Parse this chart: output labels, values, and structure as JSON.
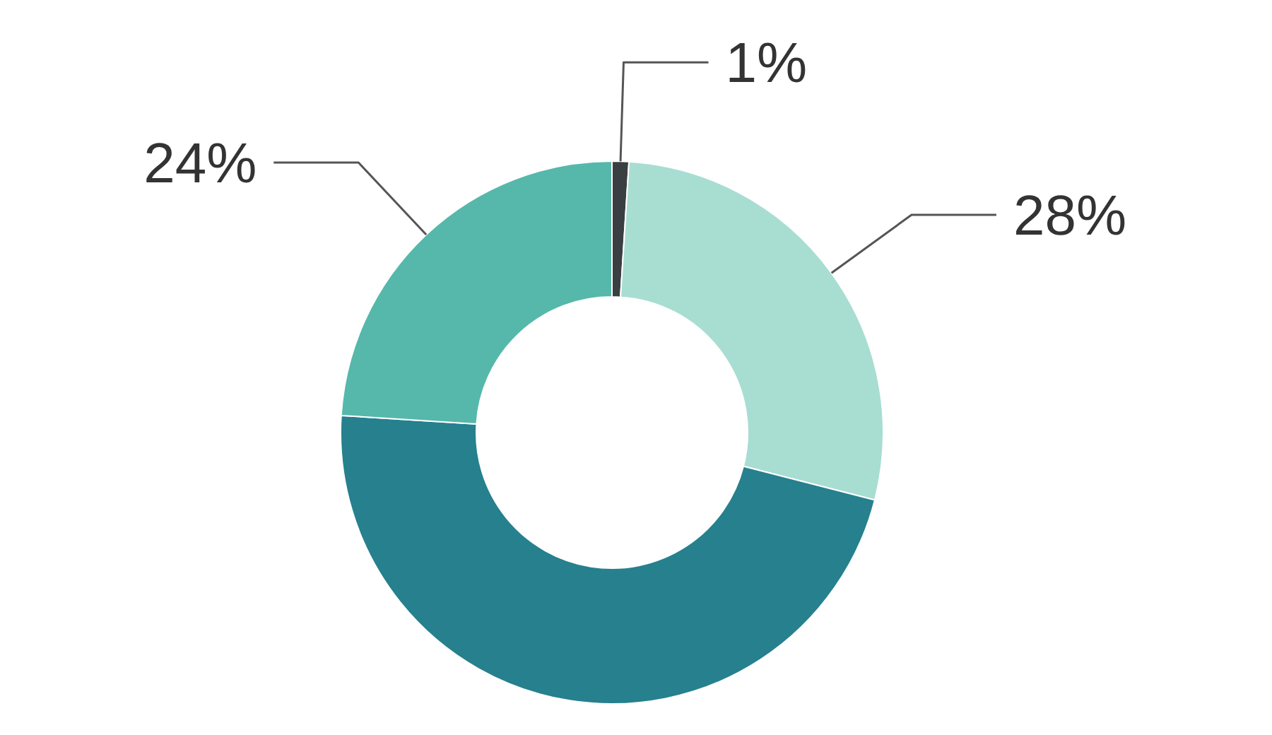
{
  "chart_data": {
    "type": "donut",
    "categories": [
      null,
      null,
      null,
      null
    ],
    "values": [
      1,
      28,
      47,
      24
    ],
    "colors": [
      "#3a3f42",
      "#a8ddd2",
      "#26808e",
      "#55b8aa"
    ],
    "value_labels": [
      "1%",
      "28%",
      null,
      "24%"
    ]
  }
}
